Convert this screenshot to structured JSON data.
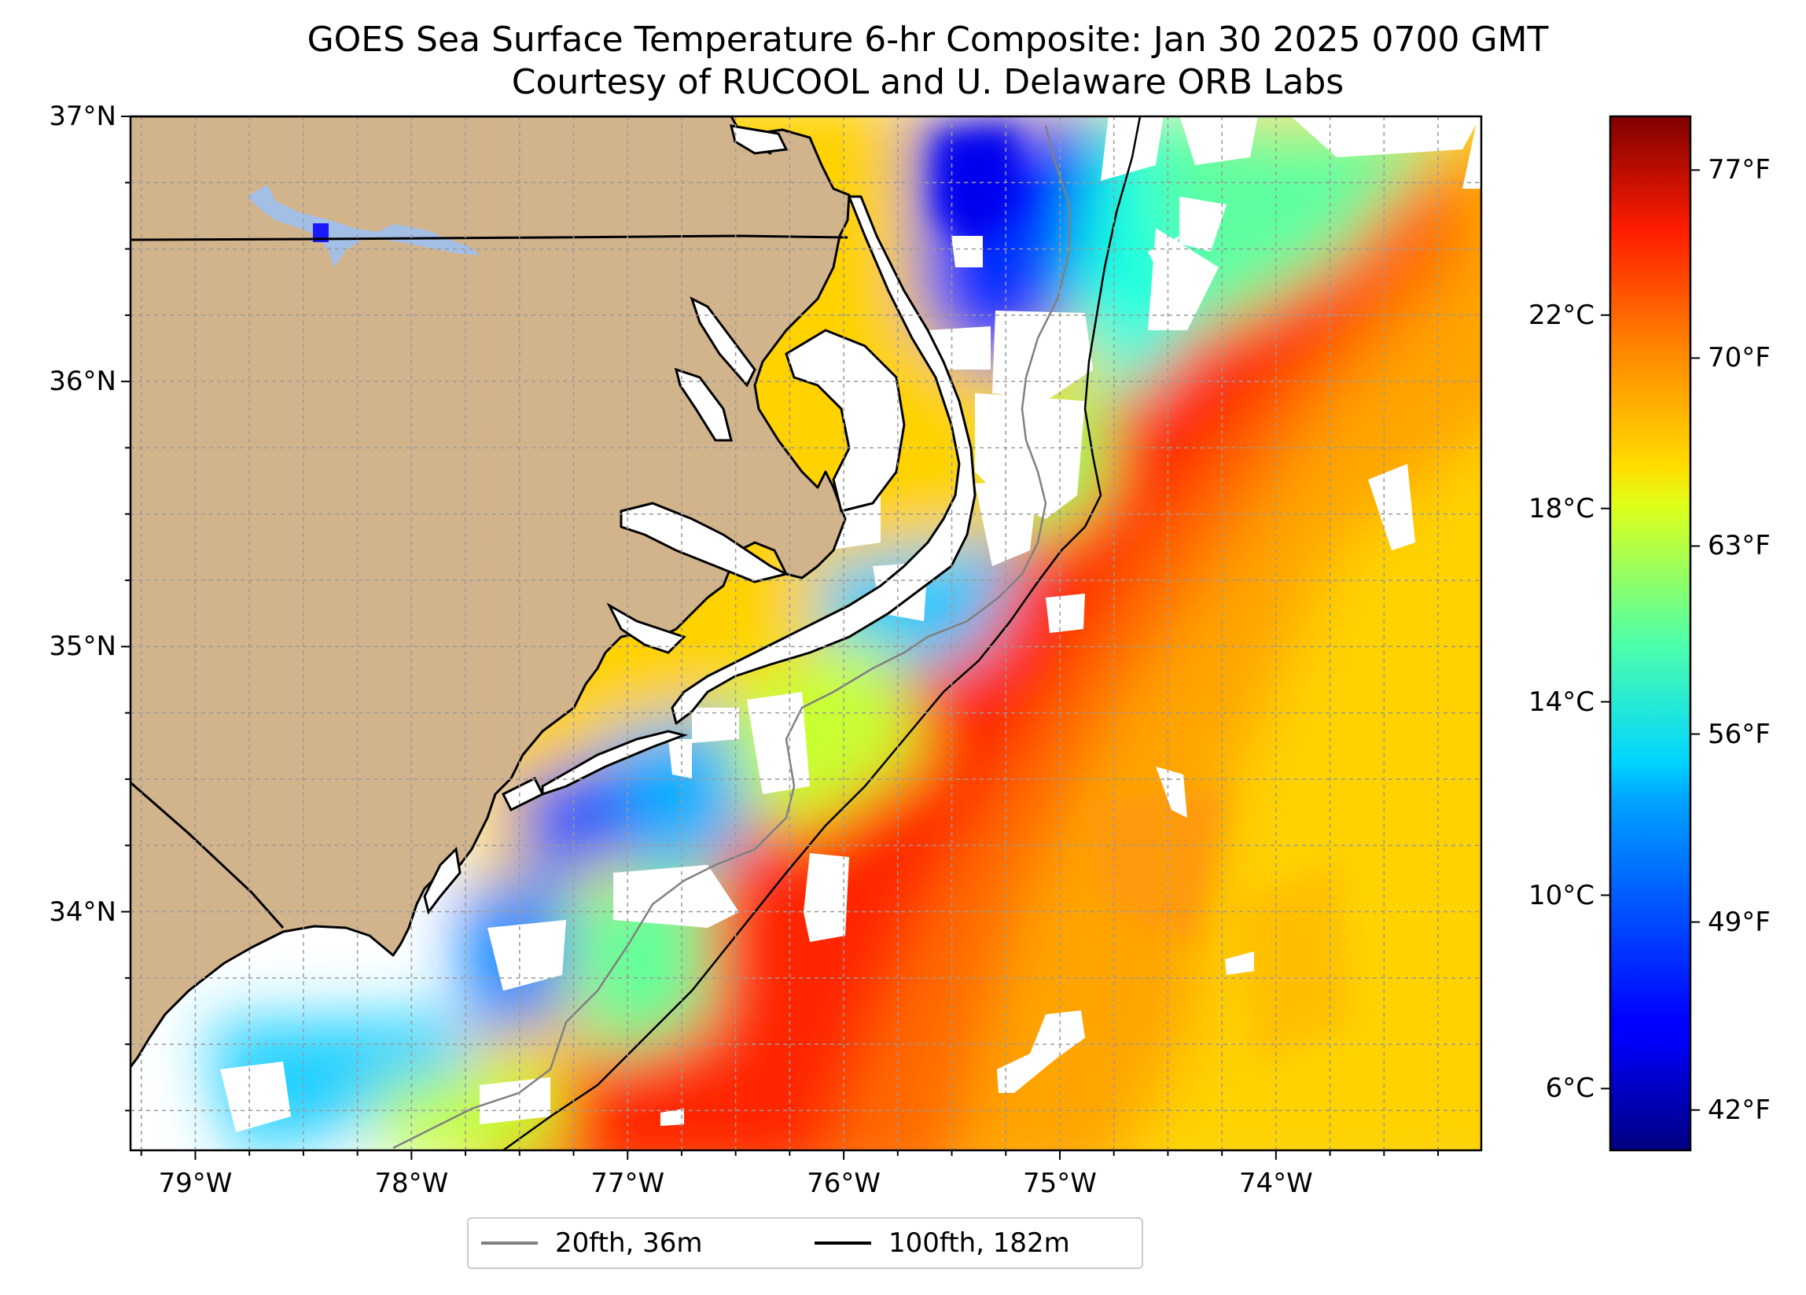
{
  "title": "GOES Sea Surface Temperature 6-hr Composite: Jan 30 2025 0700 GMT",
  "subtitle": "Courtesy of RUCOOL and U. Delaware ORB Labs",
  "map": {
    "lat_range": [
      33.1,
      37.0
    ],
    "lon_range": [
      -79.3,
      -73.05
    ],
    "lat_ticks": [
      {
        "value": 37,
        "label": "37°N"
      },
      {
        "value": 36,
        "label": "36°N"
      },
      {
        "value": 35,
        "label": "35°N"
      },
      {
        "value": 34,
        "label": "34°N"
      }
    ],
    "lon_ticks": [
      {
        "value": -79,
        "label": "79°W"
      },
      {
        "value": -78,
        "label": "78°W"
      },
      {
        "value": -77,
        "label": "77°W"
      },
      {
        "value": -76,
        "label": "76°W"
      },
      {
        "value": -75,
        "label": "75°W"
      },
      {
        "value": -74,
        "label": "74°W"
      }
    ],
    "land_color": "#d2b48c",
    "grid": true
  },
  "colorbar": {
    "colormap": "jet",
    "range_f": [
      40.5,
      79.0
    ],
    "celsius_ticks": [
      {
        "value": 22,
        "label": "22°C"
      },
      {
        "value": 18,
        "label": "18°C"
      },
      {
        "value": 14,
        "label": "14°C"
      },
      {
        "value": 10,
        "label": "10°C"
      },
      {
        "value": 6,
        "label": "6°C"
      }
    ],
    "fahrenheit_ticks": [
      {
        "value": 77,
        "label": "77°F"
      },
      {
        "value": 70,
        "label": "70°F"
      },
      {
        "value": 63,
        "label": "63°F"
      },
      {
        "value": 56,
        "label": "56°F"
      },
      {
        "value": 49,
        "label": "49°F"
      },
      {
        "value": 42,
        "label": "42°F"
      }
    ]
  },
  "legend": [
    {
      "label": "20fth, 36m",
      "color": "#808080"
    },
    {
      "label": "100fth, 182m",
      "color": "#000000"
    }
  ]
}
